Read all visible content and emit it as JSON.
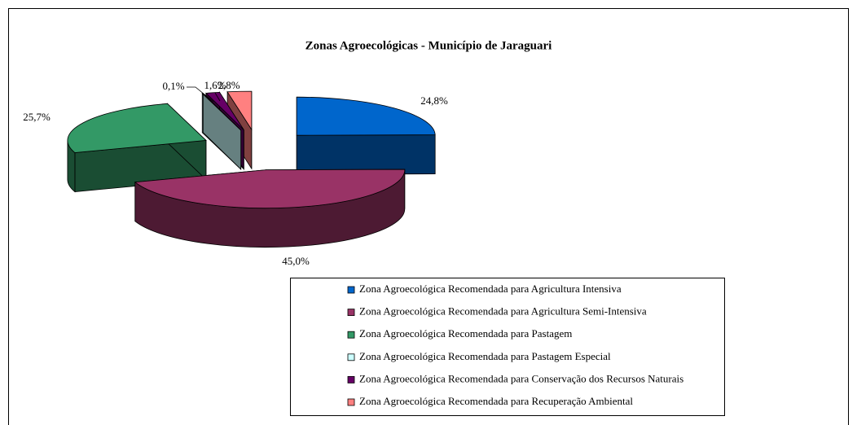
{
  "chart_data": {
    "type": "pie3d",
    "title": "Zonas Agroecológicas - Município de Jaraguari",
    "categories": [
      "Zona Agroecológica Recomendada para Agricultura Intensiva",
      "Zona Agroecológica Recomendada para Agricultura Semi-Intensiva",
      "Zona Agroecológica Recomendada para Pastagem",
      "Zona Agroecológica Recomendada para Pastagem Especial",
      "Zona Agroecológica Recomendada para Conservação dos Recursos Naturais",
      "Zona Agroecológica Recomendada para Recuperação Ambiental"
    ],
    "values": [
      24.8,
      45.0,
      25.7,
      0.1,
      1.6,
      2.8
    ],
    "value_labels": [
      "24,8%",
      "45,0%",
      "25,7%",
      "0,1%",
      "1,6%",
      "2,8%"
    ],
    "colors": [
      "#0066cc",
      "#993366",
      "#339966",
      "#ccffff",
      "#660066",
      "#ff8080"
    ],
    "legend": "bottom-right"
  }
}
